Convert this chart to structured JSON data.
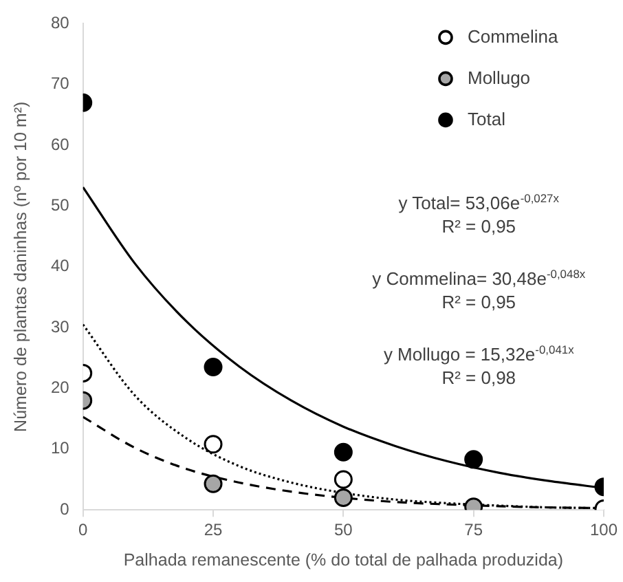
{
  "chart_data": {
    "type": "scatter",
    "xlabel": "Palhada remanescente (% do total de palhada produzida)",
    "ylabel": "Número de plantas daninhas (nº por 10 m²)",
    "x": [
      0,
      25,
      50,
      75,
      100
    ],
    "series": [
      {
        "name": "Commelina",
        "color": "#ffffff",
        "values": [
          22.5,
          10.8,
          5,
          null,
          0.2
        ]
      },
      {
        "name": "Mollugo",
        "color": "#a6a6a6",
        "values": [
          18,
          4.3,
          2,
          0.5,
          null
        ]
      },
      {
        "name": "Total",
        "color": "#000000",
        "values": [
          67,
          23.5,
          9.5,
          8.3,
          3.8
        ]
      },
      {
        "type": "line",
        "color": "#000000",
        "line_style": "solid",
        "marker": "none",
        "x": [
          0,
          10,
          20,
          30,
          40,
          50,
          60,
          70,
          80,
          90,
          100
        ],
        "values": [
          53.1,
          40.5,
          30.9,
          23.6,
          18.0,
          13.7,
          10.5,
          8.0,
          6.1,
          4.7,
          3.6
        ]
      },
      {
        "type": "line",
        "color": "#000000",
        "line_style": "dotted",
        "marker": "none",
        "x": [
          0,
          10,
          20,
          30,
          40,
          50,
          60,
          70,
          80,
          90,
          100
        ],
        "values": [
          30.5,
          18.8,
          11.7,
          7.2,
          4.5,
          2.8,
          1.7,
          1.1,
          0.7,
          0.4,
          0.3
        ]
      },
      {
        "type": "line",
        "color": "#000000",
        "line_style": "dashed",
        "marker": "none",
        "x": [
          0,
          10,
          20,
          30,
          40,
          50,
          60,
          70,
          80,
          90,
          100
        ],
        "values": [
          15.3,
          10.2,
          6.7,
          4.5,
          3.0,
          2.0,
          1.3,
          0.9,
          0.6,
          0.4,
          0.3
        ]
      }
    ],
    "xlim": [
      0,
      100
    ],
    "xticks": [
      0,
      25,
      50,
      75,
      100
    ],
    "ylim": [
      0,
      80
    ],
    "yticks": [
      0,
      10,
      20,
      30,
      40,
      50,
      60,
      70,
      80
    ],
    "grid": false,
    "legend": "top right",
    "marker": "circle",
    "annotations": [
      {
        "text": "y Total= 53,06e$^{-0,027x}$"
      },
      {
        "text": "R² = 0,95"
      },
      {
        "text": "y Commelina= 30,48e$^{-0,048x}$"
      },
      {
        "text": "R² = 0,95"
      },
      {
        "text": "y Mollugo = 15,32e$^{-0,041x}$"
      },
      {
        "text": "R² = 0,98"
      }
    ]
  }
}
